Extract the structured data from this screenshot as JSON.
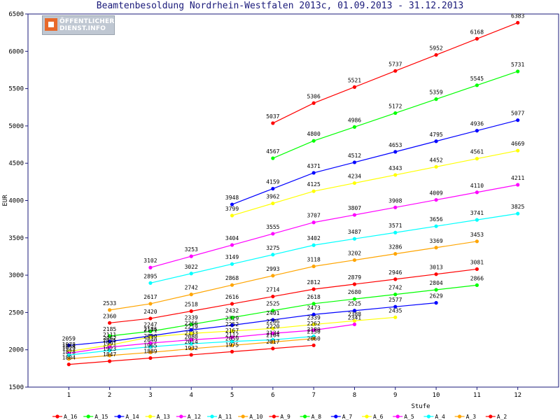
{
  "chart_data": {
    "type": "line",
    "title": "Beamtenbesoldung Nordrhein-Westfalen 2013c, 01.09.2013 - 31.12.2013",
    "xlabel": "Stufe",
    "ylabel": "EUR",
    "xlim": [
      0,
      13
    ],
    "ylim": [
      1500,
      6500
    ],
    "yticks": [
      1500,
      2000,
      2500,
      3000,
      3500,
      4000,
      4500,
      5000,
      5500,
      6000,
      6500
    ],
    "xticks": [
      1,
      2,
      3,
      4,
      5,
      6,
      7,
      8,
      9,
      10,
      11,
      12
    ],
    "grid": false,
    "legend_position": "bottom",
    "series": [
      {
        "name": "A_16",
        "color": "#ff0000",
        "x": [
          6,
          7,
          8,
          9,
          10,
          11,
          12
        ],
        "values": [
          5037,
          5306,
          5521,
          5737,
          5952,
          6168,
          6383
        ]
      },
      {
        "name": "A_15",
        "color": "#00ff00",
        "x": [
          6,
          7,
          8,
          9,
          10,
          11,
          12
        ],
        "values": [
          4567,
          4800,
          4986,
          5172,
          5359,
          5545,
          5731
        ]
      },
      {
        "name": "A_14",
        "color": "#0000ff",
        "x": [
          5,
          6,
          7,
          8,
          9,
          10,
          11,
          12
        ],
        "values": [
          3948,
          4159,
          4371,
          4512,
          4653,
          4795,
          4936,
          5077
        ]
      },
      {
        "name": "A_13",
        "color": "#ffff00",
        "x": [
          5,
          6,
          7,
          8,
          9,
          10,
          11,
          12
        ],
        "values": [
          3799,
          3962,
          4125,
          4234,
          4343,
          4452,
          4561,
          4669
        ]
      },
      {
        "name": "A_12",
        "color": "#ff00ff",
        "x": [
          3,
          4,
          5,
          6,
          7,
          8,
          9,
          10,
          11,
          12
        ],
        "values": [
          3102,
          3253,
          3404,
          3555,
          3707,
          3807,
          3908,
          4009,
          4110,
          4211
        ]
      },
      {
        "name": "A_11",
        "color": "#00ffff",
        "x": [
          3,
          4,
          5,
          6,
          7,
          8,
          9,
          10,
          11,
          12
        ],
        "values": [
          2895,
          3022,
          3149,
          3275,
          3402,
          3487,
          3571,
          3656,
          3741,
          3825
        ]
      },
      {
        "name": "A_10",
        "color": "#ffa500",
        "x": [
          2,
          3,
          4,
          5,
          6,
          7,
          8,
          9,
          10,
          11
        ],
        "values": [
          2533,
          2617,
          2742,
          2868,
          2993,
          3118,
          3202,
          3286,
          3369,
          3453
        ]
      },
      {
        "name": "A_9",
        "color": "#ff0000",
        "x": [
          2,
          3,
          4,
          5,
          6,
          7,
          8,
          9,
          10,
          11
        ],
        "values": [
          2360,
          2420,
          2518,
          2616,
          2714,
          2812,
          2879,
          2946,
          3013,
          3081
        ]
      },
      {
        "name": "A_8",
        "color": "#00ff00",
        "x": [
          2,
          3,
          4,
          5,
          6,
          7,
          8,
          9,
          10,
          11
        ],
        "values": [
          2185,
          2247,
          2339,
          2432,
          2525,
          2618,
          2680,
          2742,
          2804,
          2866
        ]
      },
      {
        "name": "A_7",
        "color": "#0000ff",
        "x": [
          1,
          2,
          3,
          4,
          5,
          6,
          7,
          8,
          9,
          10
        ],
        "values": [
          2059,
          2111,
          2186,
          2266,
          2329,
          2401,
          2473,
          2525,
          2577,
          2629
        ]
      },
      {
        "name": "A_6",
        "color": "#ffff00",
        "x": [
          1,
          2,
          3,
          4,
          5,
          6,
          7,
          8,
          9
        ],
        "values": [
          1978,
          2062,
          2171,
          2219,
          2252,
          2286,
          2339,
          2388,
          2435
        ]
      },
      {
        "name": "A_5",
        "color": "#ff00ff",
        "x": [
          1,
          2,
          3,
          4,
          5,
          6,
          7,
          8
        ],
        "values": [
          1954,
          2035,
          2090,
          2133,
          2167,
          2220,
          2262,
          2341
        ]
      },
      {
        "name": "A_4",
        "color": "#00ffff",
        "x": [
          1,
          2,
          3,
          4,
          5,
          6,
          7
        ],
        "values": [
          1929,
          1991,
          2040,
          2080,
          2112,
          2134,
          2180
        ]
      },
      {
        "name": "A_3",
        "color": "#ffa500",
        "x": [
          1,
          2,
          3,
          4,
          5,
          6,
          7
        ],
        "values": [
          1878,
          1923,
          1965,
          2014,
          2059,
          2104,
          2150
        ]
      },
      {
        "name": "A_2",
        "color": "#ff0000",
        "x": [
          1,
          2,
          3,
          4,
          5,
          6,
          7
        ],
        "values": [
          1804,
          1847,
          1889,
          1932,
          1975,
          2017,
          2060
        ]
      }
    ]
  },
  "logo": {
    "line1": "ÖFFENTLICHER",
    "line2": "DIENST.INFO"
  }
}
